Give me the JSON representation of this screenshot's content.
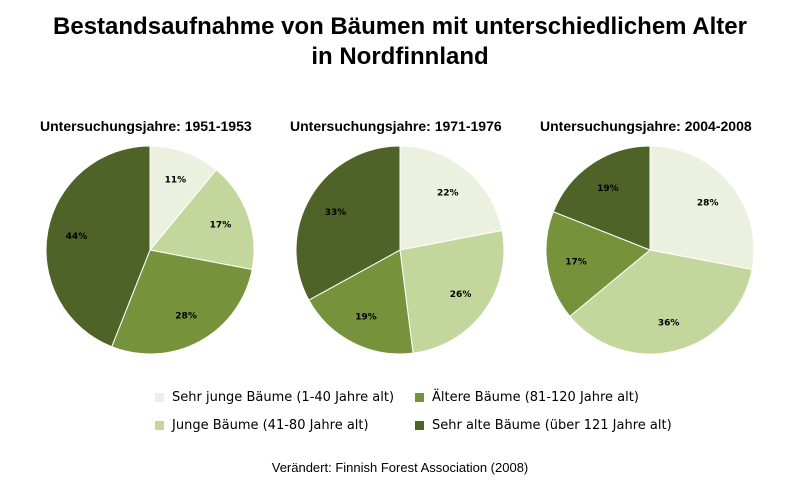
{
  "title_line1": "Bestandsaufnahme von Bäumen mit unterschiedlichem Alter",
  "title_line2": "in Nordfinnland",
  "source": "Verändert: Finnish Forest Association (2008)",
  "colors": {
    "sehr_jung": "#ebf1de",
    "jung": "#c3d69b",
    "aelter": "#76933c",
    "sehr_alt": "#4f6228"
  },
  "chart_data": [
    {
      "type": "pie",
      "title": "Untersuchungsjahre: 1951-1953",
      "categories": [
        "Sehr junge Bäume (1-40 Jahre alt)",
        "Junge Bäume (41-80 Jahre alt)",
        "Ältere Bäume (81-120 Jahre alt)",
        "Sehr alte Bäume (über 121 Jahre alt)"
      ],
      "values": [
        11,
        17,
        28,
        44
      ],
      "labels": [
        "11%",
        "17%",
        "28%",
        "44%"
      ]
    },
    {
      "type": "pie",
      "title": "Untersuchungsjahre: 1971-1976",
      "categories": [
        "Sehr junge Bäume (1-40 Jahre alt)",
        "Junge Bäume (41-80 Jahre alt)",
        "Ältere Bäume (81-120 Jahre alt)",
        "Sehr alte Bäume (über 121 Jahre alt)"
      ],
      "values": [
        22,
        26,
        19,
        33
      ],
      "labels": [
        "22%",
        "26%",
        "19%",
        "33%"
      ]
    },
    {
      "type": "pie",
      "title": "Untersuchungsjahre: 2004-2008",
      "categories": [
        "Sehr junge Bäume (1-40 Jahre alt)",
        "Junge Bäume (41-80 Jahre alt)",
        "Ältere Bäume (81-120 Jahre alt)",
        "Sehr alte Bäume (über 121 Jahre alt)"
      ],
      "values": [
        28,
        36,
        17,
        19
      ],
      "labels": [
        "28%",
        "36%",
        "17%",
        "19%"
      ]
    }
  ],
  "legend": [
    {
      "label": "Sehr junge Bäume (1-40 Jahre alt)",
      "color": "#ebf1de"
    },
    {
      "label": "Ältere Bäume (81-120 Jahre alt)",
      "color": "#76933c"
    },
    {
      "label": "Junge Bäume (41-80 Jahre alt)",
      "color": "#c3d69b"
    },
    {
      "label": "Sehr alte Bäume (über 121 Jahre alt)",
      "color": "#4f6228"
    }
  ]
}
